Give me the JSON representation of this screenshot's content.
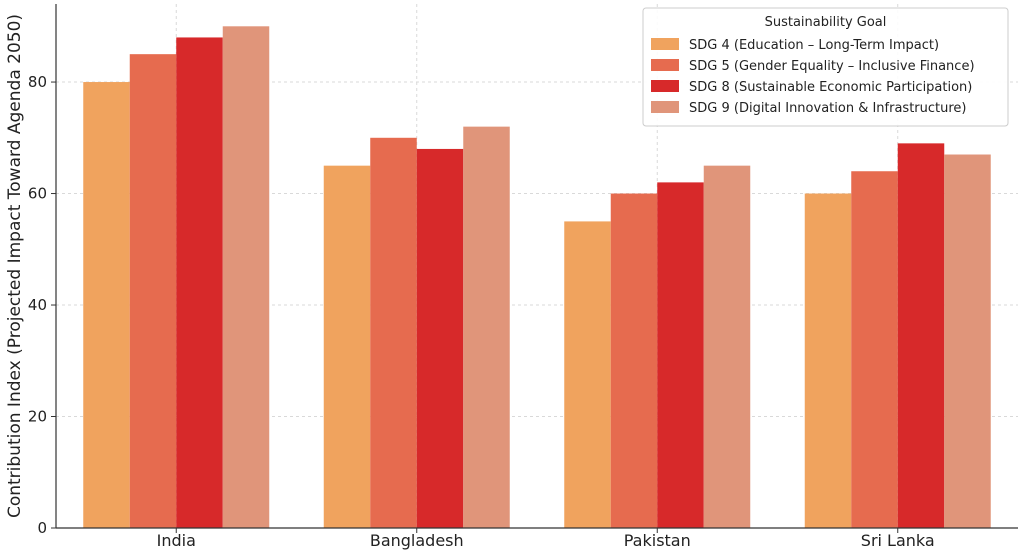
{
  "chart_data": {
    "type": "bar",
    "categories": [
      "India",
      "Bangladesh",
      "Pakistan",
      "Sri Lanka"
    ],
    "series": [
      {
        "name": "SDG 4 (Education – Long-Term Impact)",
        "values": [
          80,
          65,
          55,
          60
        ],
        "color": "#f0a35e"
      },
      {
        "name": "SDG 5 (Gender Equality – Inclusive Finance)",
        "values": [
          85,
          70,
          60,
          64
        ],
        "color": "#e66b4f"
      },
      {
        "name": "SDG 8 (Sustainable Economic Participation)",
        "values": [
          88,
          68,
          62,
          69
        ],
        "color": "#d7292a"
      },
      {
        "name": "SDG 9 (Digital Innovation & Infrastructure)",
        "values": [
          90,
          72,
          65,
          67
        ],
        "color": "#e0957a"
      }
    ],
    "title": "",
    "xlabel": "",
    "ylabel": "Contribution Index (Projected Impact Toward Agenda 2050)",
    "ylim": [
      0,
      90
    ],
    "yticks": [
      0,
      20,
      40,
      60,
      80
    ],
    "legend_title": "Sustainability Goal",
    "legend_position": "top-right",
    "grid": true
  }
}
